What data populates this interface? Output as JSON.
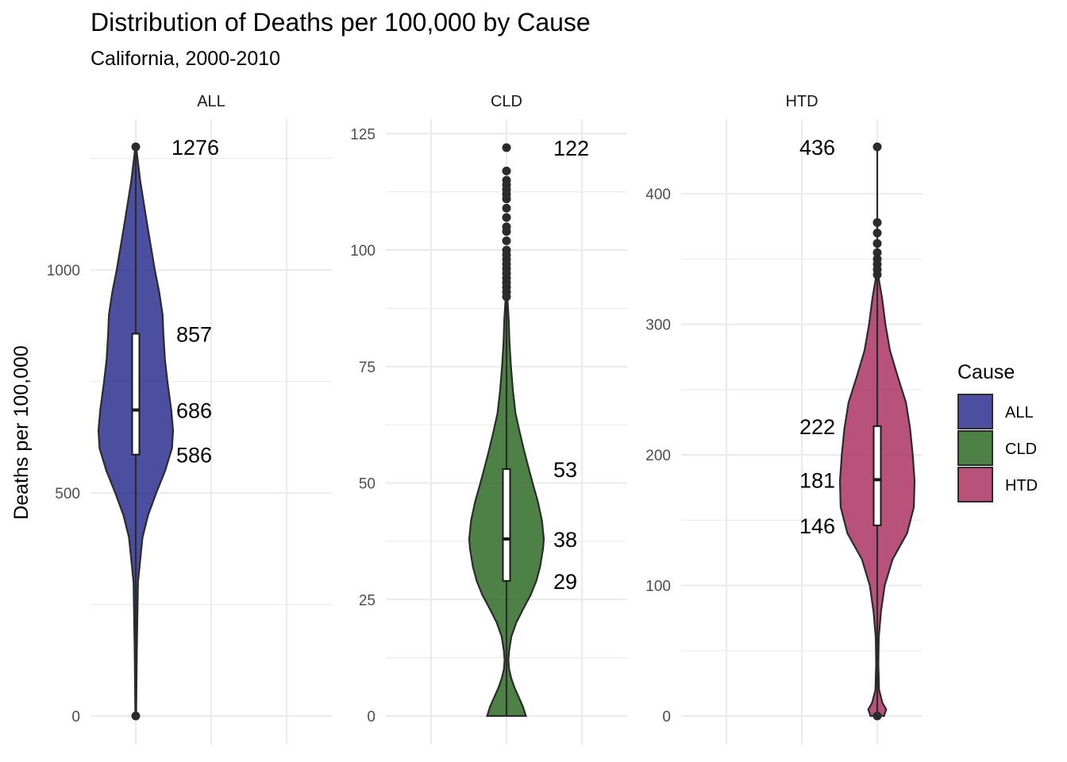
{
  "title": "Distribution of Deaths per 100,000 by Cause",
  "subtitle": "California, 2000-2010",
  "ylabel": "Deaths per 100,000",
  "chart_data": {
    "type": "violin",
    "title": "Distribution of Deaths per 100,000 by Cause",
    "subtitle": "California, 2000-2010",
    "ylabel": "Deaths per 100,000",
    "xlabel": "",
    "facets": [
      {
        "name": "ALL",
        "color": "#2d2f8f",
        "ylim": [
          0,
          1276
        ],
        "ticks": [
          0,
          500,
          1000
        ],
        "minor_ticks": [
          250,
          750,
          1250
        ],
        "box": {
          "q1": 586,
          "median": 686,
          "q3": 857,
          "min": 0,
          "max": 1276
        },
        "outliers": [
          0,
          1276
        ],
        "labels": [
          1276,
          857,
          686,
          586
        ],
        "density": [
          [
            0,
            0.01
          ],
          [
            150,
            0.03
          ],
          [
            300,
            0.06
          ],
          [
            400,
            0.18
          ],
          [
            450,
            0.33
          ],
          [
            500,
            0.55
          ],
          [
            550,
            0.79
          ],
          [
            586,
            0.92
          ],
          [
            600,
            0.97
          ],
          [
            640,
            1.0
          ],
          [
            686,
            0.95
          ],
          [
            750,
            0.85
          ],
          [
            800,
            0.78
          ],
          [
            857,
            0.74
          ],
          [
            900,
            0.72
          ],
          [
            950,
            0.63
          ],
          [
            1000,
            0.51
          ],
          [
            1100,
            0.31
          ],
          [
            1200,
            0.12
          ],
          [
            1276,
            0.01
          ]
        ]
      },
      {
        "name": "CLD",
        "color": "#2f6b25",
        "ylim": [
          0,
          122
        ],
        "ticks": [
          0,
          25,
          50,
          75,
          100,
          125
        ],
        "minor_ticks": [
          12.5,
          37.5,
          62.5,
          87.5,
          112.5
        ],
        "box": {
          "q1": 29,
          "median": 38,
          "q3": 53,
          "min": 0,
          "max": 89
        },
        "outliers": [
          90,
          91,
          92,
          93,
          94,
          95,
          96,
          97,
          98,
          99,
          100,
          102,
          104,
          105,
          107,
          109,
          111,
          112,
          113,
          114,
          115,
          117,
          122
        ],
        "labels": [
          122,
          53,
          38,
          29
        ],
        "density": [
          [
            0,
            0.52
          ],
          [
            2,
            0.44
          ],
          [
            4,
            0.33
          ],
          [
            6,
            0.22
          ],
          [
            8,
            0.13
          ],
          [
            10,
            0.07
          ],
          [
            12,
            0.05
          ],
          [
            14,
            0.07
          ],
          [
            17,
            0.13
          ],
          [
            20,
            0.26
          ],
          [
            23,
            0.45
          ],
          [
            26,
            0.65
          ],
          [
            29,
            0.8
          ],
          [
            32,
            0.9
          ],
          [
            36,
            0.98
          ],
          [
            38,
            1.0
          ],
          [
            42,
            0.95
          ],
          [
            46,
            0.84
          ],
          [
            50,
            0.7
          ],
          [
            53,
            0.6
          ],
          [
            57,
            0.47
          ],
          [
            61,
            0.35
          ],
          [
            65,
            0.24
          ],
          [
            70,
            0.17
          ],
          [
            75,
            0.12
          ],
          [
            80,
            0.08
          ],
          [
            85,
            0.06
          ],
          [
            89,
            0.03
          ],
          [
            90,
            0.01
          ]
        ]
      },
      {
        "name": "HTD",
        "color": "#ab3463",
        "ylim": [
          0,
          436
        ],
        "ticks": [
          0,
          100,
          200,
          300,
          400
        ],
        "minor_ticks": [
          50,
          150,
          250,
          350
        ],
        "box": {
          "q1": 146,
          "median": 181,
          "q3": 222,
          "min": 0,
          "max": 436
        },
        "outliers": [
          0,
          338,
          342,
          346,
          350,
          355,
          362,
          370,
          378,
          436
        ],
        "labels": [
          436,
          222,
          181,
          146
        ],
        "density": [
          [
            0,
            0.18
          ],
          [
            5,
            0.24
          ],
          [
            10,
            0.14
          ],
          [
            20,
            0.05
          ],
          [
            40,
            0.03
          ],
          [
            60,
            0.04
          ],
          [
            80,
            0.1
          ],
          [
            100,
            0.2
          ],
          [
            120,
            0.41
          ],
          [
            140,
            0.8
          ],
          [
            160,
            0.98
          ],
          [
            180,
            1.0
          ],
          [
            200,
            0.95
          ],
          [
            220,
            0.88
          ],
          [
            240,
            0.77
          ],
          [
            260,
            0.55
          ],
          [
            280,
            0.34
          ],
          [
            300,
            0.22
          ],
          [
            320,
            0.13
          ],
          [
            335,
            0.04
          ]
        ]
      }
    ],
    "legend": {
      "title": "Cause",
      "position": "right",
      "items": [
        {
          "label": "ALL",
          "color": "#2d2f8f"
        },
        {
          "label": "CLD",
          "color": "#2f6b25"
        },
        {
          "label": "HTD",
          "color": "#ab3463"
        }
      ]
    },
    "grid": true
  }
}
